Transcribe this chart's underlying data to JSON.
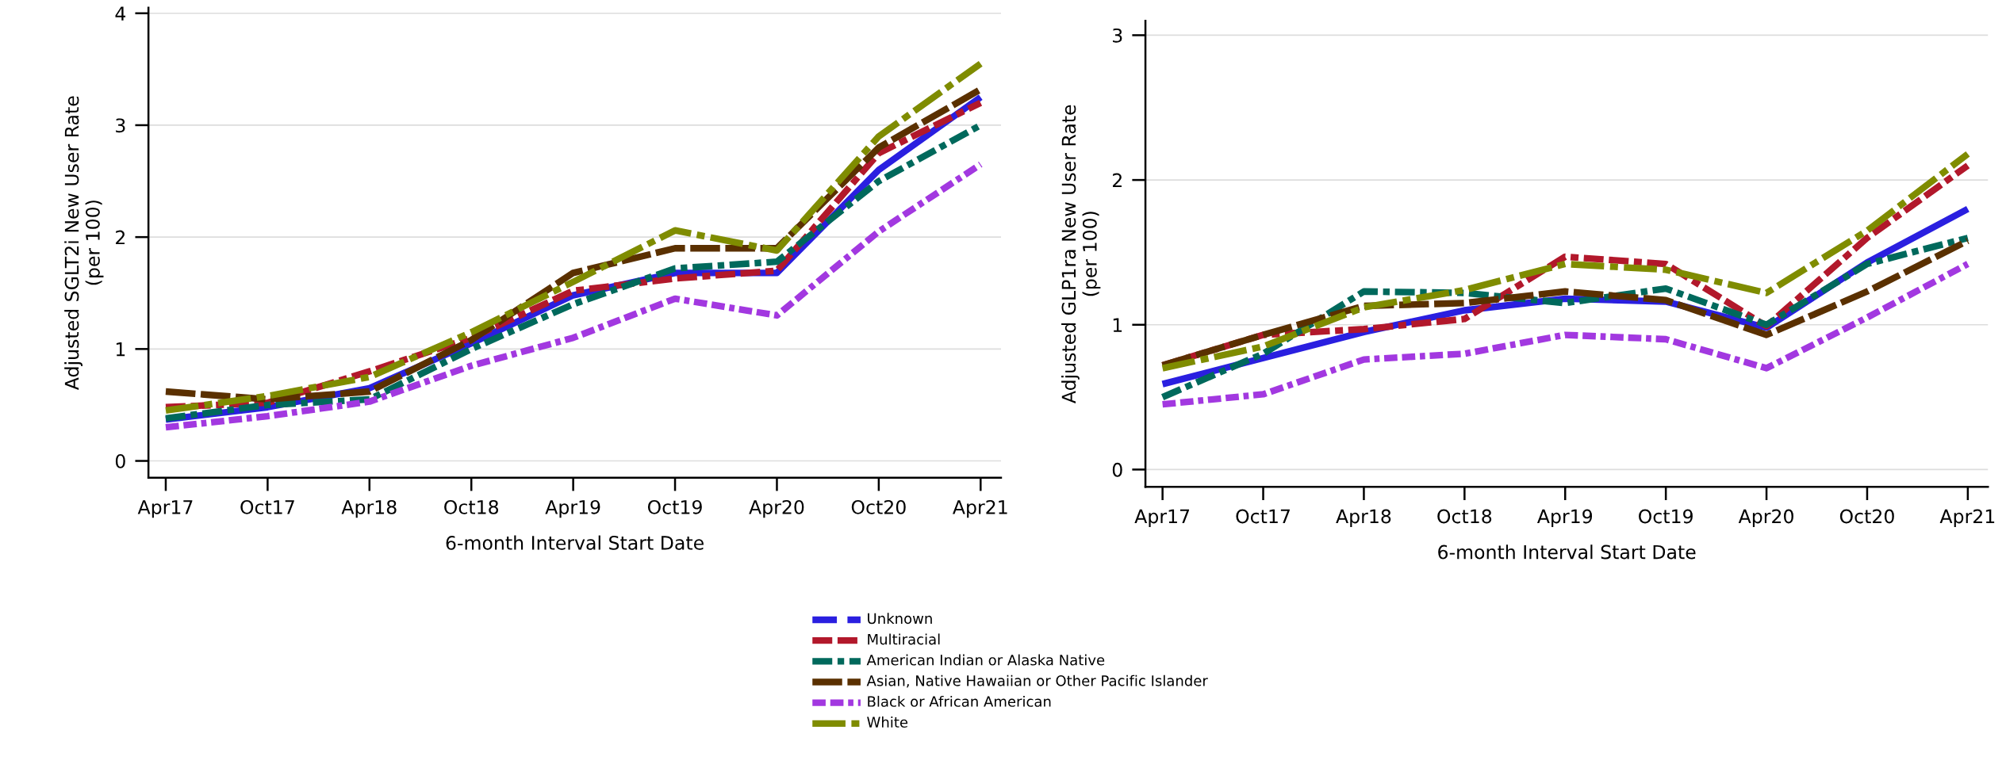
{
  "chart_data": [
    {
      "type": "line",
      "xlabel": "6-month Interval Start Date",
      "ylabel": "Adjusted SGLT2i New User Rate\n(per 100)",
      "categories": [
        "Apr17",
        "Oct17",
        "Apr18",
        "Oct18",
        "Apr19",
        "Oct19",
        "Apr20",
        "Oct20",
        "Apr21"
      ],
      "ylim": [
        -0.15,
        4.05
      ],
      "yticks": [
        0,
        1,
        2,
        3,
        4
      ],
      "grid": "y",
      "legend": "bottom",
      "series": [
        {
          "name": "Unknown",
          "color": "#2a1fe0",
          "line_style": "solid",
          "values": [
            0.37,
            0.48,
            0.65,
            1.05,
            1.48,
            1.68,
            1.68,
            2.6,
            3.25
          ]
        },
        {
          "name": "Multiracial",
          "color": "#b2182b",
          "line_style": "dashed",
          "values": [
            0.48,
            0.52,
            0.8,
            1.1,
            1.52,
            1.63,
            1.7,
            2.75,
            3.2
          ]
        },
        {
          "name": "American Indian or Alaska Native",
          "color": "#00695c",
          "line_style": "dashdot",
          "values": [
            0.38,
            0.5,
            0.55,
            1.0,
            1.4,
            1.72,
            1.78,
            2.5,
            3.0
          ]
        },
        {
          "name": "Asian, Native Hawaiian or Other Pacific Islander",
          "color": "#5a3000",
          "line_style": "longdash",
          "values": [
            0.62,
            0.55,
            0.62,
            1.08,
            1.68,
            1.9,
            1.9,
            2.8,
            3.32
          ]
        },
        {
          "name": "Black or African American",
          "color": "#a238e0",
          "line_style": "dashdotdot",
          "values": [
            0.3,
            0.4,
            0.53,
            0.85,
            1.1,
            1.45,
            1.3,
            2.05,
            2.65
          ]
        },
        {
          "name": "White",
          "color": "#7f8c00",
          "line_style": "longdashdot",
          "values": [
            0.45,
            0.58,
            0.75,
            1.15,
            1.6,
            2.06,
            1.88,
            2.9,
            3.55
          ]
        }
      ]
    },
    {
      "type": "line",
      "xlabel": "6-month Interval Start Date",
      "ylabel": "Adjusted GLP1ra New User Rate\n(per 100)",
      "categories": [
        "Apr17",
        "Oct17",
        "Apr18",
        "Oct18",
        "Apr19",
        "Oct19",
        "Apr20",
        "Oct20",
        "Apr21"
      ],
      "ylim": [
        -0.12,
        3.1
      ],
      "yticks": [
        0,
        1,
        2,
        3
      ],
      "grid": "y",
      "series": [
        {
          "color": "#2a1fe0",
          "line_style": "solid",
          "values": [
            0.59,
            0.77,
            0.95,
            1.1,
            1.18,
            1.16,
            0.98,
            1.43,
            1.8
          ]
        },
        {
          "color": "#b2182b",
          "line_style": "dashed",
          "values": [
            0.72,
            0.93,
            0.97,
            1.04,
            1.47,
            1.42,
            0.99,
            1.6,
            2.1
          ]
        },
        {
          "color": "#00695c",
          "line_style": "dashdot",
          "values": [
            0.5,
            0.8,
            1.23,
            1.22,
            1.15,
            1.25,
            1.0,
            1.42,
            1.6
          ]
        },
        {
          "color": "#5a3000",
          "line_style": "longdash",
          "values": [
            0.72,
            0.93,
            1.13,
            1.15,
            1.23,
            1.17,
            0.93,
            1.23,
            1.58
          ]
        },
        {
          "color": "#a238e0",
          "line_style": "dashdotdot",
          "values": [
            0.45,
            0.52,
            0.76,
            0.8,
            0.93,
            0.9,
            0.7,
            1.05,
            1.42
          ]
        },
        {
          "color": "#7f8c00",
          "line_style": "longdashdot",
          "values": [
            0.7,
            0.85,
            1.12,
            1.24,
            1.42,
            1.38,
            1.22,
            1.65,
            2.18
          ]
        }
      ]
    }
  ]
}
